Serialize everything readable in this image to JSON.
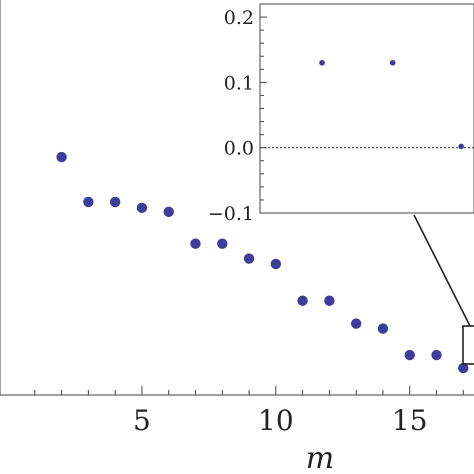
{
  "chart_data": [
    {
      "type": "scatter",
      "xlabel": "m",
      "ylabel": "",
      "xlim": [
        -0.3,
        17.4
      ],
      "ylim": [
        -0.93,
        -0.05
      ],
      "x_ticks": [
        5,
        10,
        15
      ],
      "x_tick_labels": [
        "5",
        "10",
        "15"
      ],
      "marker_color": "#3d3d9c",
      "grid": false,
      "series": [
        {
          "x": [
            2,
            3,
            4,
            5,
            6,
            7,
            8,
            9,
            10,
            11,
            12,
            13,
            14,
            15,
            16,
            17
          ],
          "y": [
            -0.4,
            -0.5,
            -0.5,
            -0.513,
            -0.522,
            -0.593,
            -0.593,
            -0.626,
            -0.638,
            -0.72,
            -0.72,
            -0.771,
            -0.782,
            -0.841,
            -0.841,
            -0.87
          ]
        }
      ],
      "annotations": [
        "zoom box around m = 17 linked to inset"
      ]
    },
    {
      "type": "scatter",
      "inset": true,
      "xlabel": "",
      "ylabel": "",
      "ylim": [
        -0.1,
        0.22
      ],
      "y_ticks": [
        0.2,
        0.1,
        0.0,
        -0.1
      ],
      "y_tick_labels": [
        "0.2",
        "0.1",
        "0.0",
        "−0.1"
      ],
      "zero_line": "dotted",
      "marker_color": "#3d3d9c",
      "series": [
        {
          "x": [
            0.29,
            0.62,
            0.94
          ],
          "y": [
            0.13,
            0.13,
            0.002
          ]
        }
      ]
    }
  ]
}
